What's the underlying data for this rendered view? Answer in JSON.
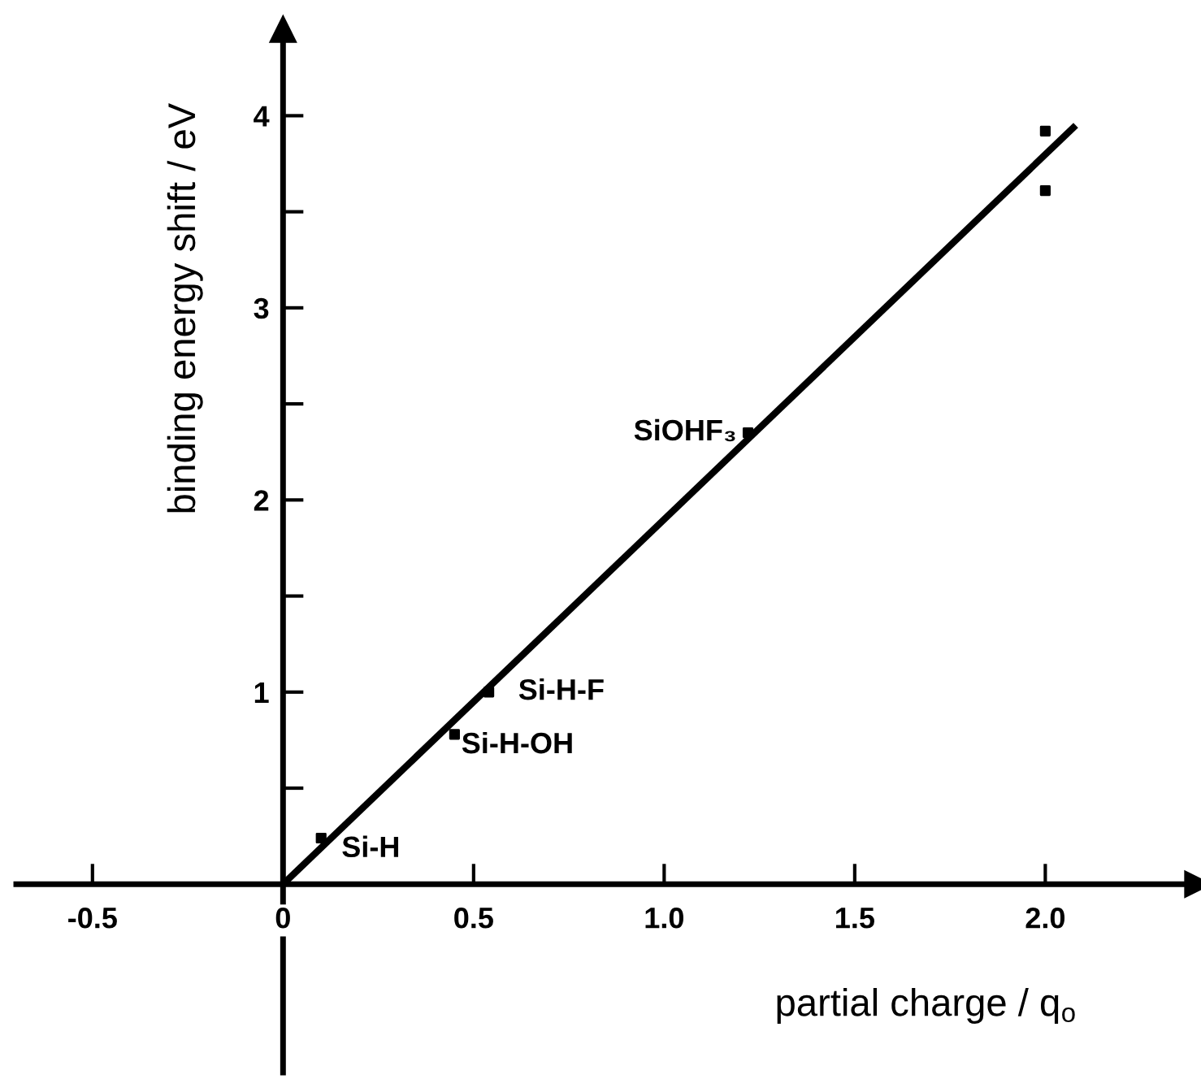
{
  "chart_data": {
    "type": "scatter",
    "xlabel": "partial charge / q$_{o}$",
    "ylabel": "binding energy shift / eV",
    "xlim": [
      -0.7,
      2.4
    ],
    "ylim": [
      -0.98,
      4.45
    ],
    "xticks": [
      -0.5,
      0,
      0.5,
      {
        "value": 1.0,
        "label": "1.0"
      },
      1.5,
      {
        "value": 2.0,
        "label": "2.0"
      }
    ],
    "yticks": [
      {
        "value": 0.5,
        "label": null
      },
      1,
      {
        "value": 1.5,
        "label": null
      },
      2,
      {
        "value": 2.5,
        "label": null
      },
      3,
      {
        "value": 3.5,
        "label": null
      },
      4
    ],
    "grid": false,
    "legend": false,
    "series": [
      {
        "type": "line",
        "color": "#000000",
        "x": [
          0,
          2.08
        ],
        "values": [
          0,
          3.95
        ],
        "line_style": "solid",
        "marker": "none"
      },
      {
        "marker": "square",
        "color": "#000000",
        "x": [
          0.1,
          0.45,
          0.54,
          1.22,
          2.0,
          2.0
        ],
        "values": [
          0.24,
          0.78,
          1.0,
          2.35,
          3.92,
          3.61
        ]
      }
    ],
    "annotations": [
      {
        "text": "Si-H",
        "x": 0.1,
        "y": 0.24
      },
      {
        "text": "Si-H-OH",
        "x": 0.45,
        "y": 0.78
      },
      {
        "text": "Si-H-F",
        "x": 0.54,
        "y": 1.0
      },
      {
        "text": "SiOHF₃",
        "x": 1.22,
        "y": 2.35
      }
    ]
  }
}
